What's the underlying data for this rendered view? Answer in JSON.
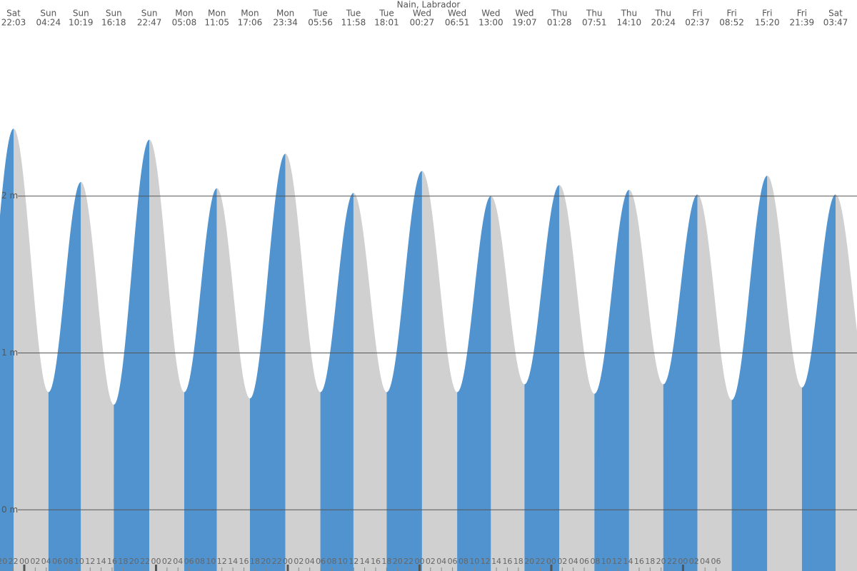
{
  "chart_data": {
    "type": "tide",
    "title": "Nain, Labrador",
    "extremes": [
      {
        "day": "Sat",
        "time": "22:03",
        "height": 2.43
      },
      {
        "day": "Sun",
        "time": "04:24",
        "height": 0.75
      },
      {
        "day": "Sun",
        "time": "10:19",
        "height": 2.09
      },
      {
        "day": "Sun",
        "time": "16:18",
        "height": 0.67
      },
      {
        "day": "Sun",
        "time": "22:47",
        "height": 2.36
      },
      {
        "day": "Mon",
        "time": "05:08",
        "height": 0.75
      },
      {
        "day": "Mon",
        "time": "11:05",
        "height": 2.05
      },
      {
        "day": "Mon",
        "time": "17:06",
        "height": 0.71
      },
      {
        "day": "Mon",
        "time": "23:34",
        "height": 2.27
      },
      {
        "day": "Tue",
        "time": "05:56",
        "height": 0.75
      },
      {
        "day": "Tue",
        "time": "11:58",
        "height": 2.02
      },
      {
        "day": "Tue",
        "time": "18:01",
        "height": 0.75
      },
      {
        "day": "Wed",
        "time": "00:27",
        "height": 2.16
      },
      {
        "day": "Wed",
        "time": "06:51",
        "height": 0.75
      },
      {
        "day": "Wed",
        "time": "13:00",
        "height": 2.0
      },
      {
        "day": "Wed",
        "time": "19:07",
        "height": 0.8
      },
      {
        "day": "Thu",
        "time": "01:28",
        "height": 2.07
      },
      {
        "day": "Thu",
        "time": "07:51",
        "height": 0.74
      },
      {
        "day": "Thu",
        "time": "14:10",
        "height": 2.04
      },
      {
        "day": "Thu",
        "time": "20:24",
        "height": 0.8
      },
      {
        "day": "Fri",
        "time": "02:37",
        "height": 2.01
      },
      {
        "day": "Fri",
        "time": "08:52",
        "height": 0.7
      },
      {
        "day": "Fri",
        "time": "15:20",
        "height": 2.13
      },
      {
        "day": "Fri",
        "time": "21:39",
        "height": 0.78
      },
      {
        "day": "Sat",
        "time": "03:47",
        "height": 2.01
      }
    ],
    "hour_labels": [
      "20",
      "22",
      "00",
      "02",
      "04",
      "06",
      "08",
      "10",
      "12",
      "14",
      "16",
      "18",
      "20",
      "22",
      "00",
      "02",
      "04",
      "06",
      "08",
      "10",
      "12",
      "14",
      "16",
      "18",
      "20",
      "22",
      "00",
      "02",
      "04",
      "06",
      "08",
      "10",
      "12",
      "14",
      "16",
      "18",
      "20",
      "22",
      "00",
      "02",
      "04",
      "06",
      "08",
      "10",
      "12",
      "14",
      "16",
      "18",
      "20",
      "22",
      "00",
      "02",
      "04",
      "06",
      "08",
      "10",
      "12",
      "14",
      "16",
      "18",
      "20",
      "22",
      "00",
      "02",
      "04",
      "06"
    ],
    "ylim": [
      -0.39,
      3.25
    ],
    "yticks": [
      {
        "value": 0,
        "label": "0 m"
      },
      {
        "value": 1,
        "label": "1 m"
      },
      {
        "value": 2,
        "label": "2 m"
      }
    ],
    "rising_color": "#5093cf",
    "falling_color": "#d0d0d0",
    "grid": true
  }
}
